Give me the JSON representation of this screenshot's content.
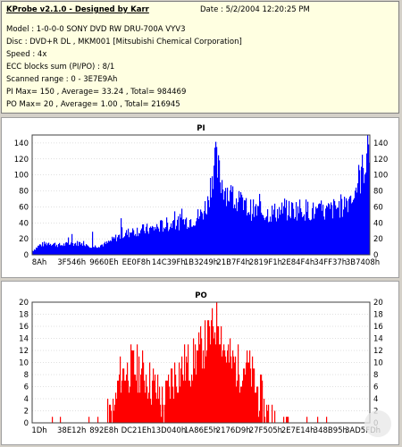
{
  "app": {
    "title": "KProbe v2.1.0 - Designed by Karr",
    "date": "Date : 5/2/2004 12:20:25 PM"
  },
  "info": {
    "model": "Model : 1-0-0-0 SONY    DVD RW DRU-700A  VYV3",
    "disc": "Disc : DVD+R DL , MKM001 [Mitsubishi Chemical Corporation]",
    "speed": "Speed : 4x",
    "ecc": "ECC blocks sum (PI/PO) : 8/1",
    "range": "Scanned range : 0 - 3E7E9Ah",
    "pi_stats": "PI Max= 150 , Average= 33.24 , Total= 984469",
    "po_stats": "PO Max= 20 , Average= 1.00 , Total= 216945"
  },
  "colors": {
    "panel_bg": "#ffffe1",
    "chart_fill": "#0000ff",
    "po_fill": "#ff0000",
    "chart_title_pi": "#0000cc",
    "chart_title_po": "#cc00cc"
  },
  "chart_data": [
    {
      "type": "area",
      "title": "PI",
      "xlabel": "",
      "ylabel": "",
      "ylim": [
        0,
        150
      ],
      "yticks": [
        0,
        20,
        40,
        60,
        80,
        100,
        120,
        140
      ],
      "grid": true,
      "xticks": [
        "8Ah",
        "3F546h",
        "9660Eh",
        "EE0F8h",
        "14C39Fh",
        "1B3249h",
        "21B7F4h",
        "2819F1h",
        "2E84F4h",
        "34FF37h",
        "3B7408h"
      ],
      "values_profile": [
        [
          0,
          5
        ],
        [
          0.02,
          12
        ],
        [
          0.05,
          15
        ],
        [
          0.08,
          12
        ],
        [
          0.12,
          14
        ],
        [
          0.15,
          15
        ],
        [
          0.18,
          10
        ],
        [
          0.22,
          14
        ],
        [
          0.25,
          22
        ],
        [
          0.3,
          30
        ],
        [
          0.35,
          32
        ],
        [
          0.4,
          38
        ],
        [
          0.45,
          42
        ],
        [
          0.48,
          45
        ],
        [
          0.5,
          50
        ],
        [
          0.52,
          65
        ],
        [
          0.54,
          120
        ],
        [
          0.56,
          92
        ],
        [
          0.58,
          78
        ],
        [
          0.6,
          70
        ],
        [
          0.63,
          60
        ],
        [
          0.66,
          55
        ],
        [
          0.7,
          52
        ],
        [
          0.75,
          55
        ],
        [
          0.8,
          58
        ],
        [
          0.85,
          52
        ],
        [
          0.88,
          55
        ],
        [
          0.92,
          62
        ],
        [
          0.95,
          75
        ],
        [
          0.98,
          105
        ],
        [
          1.0,
          140
        ]
      ]
    },
    {
      "type": "area",
      "title": "PO",
      "xlabel": "",
      "ylabel": "",
      "ylim": [
        0,
        20
      ],
      "yticks": [
        0,
        2,
        4,
        6,
        8,
        10,
        12,
        14,
        16,
        18,
        20
      ],
      "grid": true,
      "xticks": [
        "1Dh",
        "38E12h",
        "892E8h",
        "DC21Eh",
        "13D040h",
        "1A86E5h",
        "2176D9h",
        "27F505h",
        "2E7E14h",
        "348B95h",
        "3AD5FDh"
      ],
      "values_profile": [
        [
          0,
          0
        ],
        [
          0.22,
          0
        ],
        [
          0.24,
          1
        ],
        [
          0.26,
          8
        ],
        [
          0.3,
          9
        ],
        [
          0.34,
          8
        ],
        [
          0.36,
          6
        ],
        [
          0.39,
          3
        ],
        [
          0.41,
          7
        ],
        [
          0.44,
          9
        ],
        [
          0.47,
          10
        ],
        [
          0.5,
          12
        ],
        [
          0.52,
          14
        ],
        [
          0.54,
          16
        ],
        [
          0.55,
          18
        ],
        [
          0.57,
          12
        ],
        [
          0.59,
          10
        ],
        [
          0.61,
          9
        ],
        [
          0.63,
          10
        ],
        [
          0.65,
          8
        ],
        [
          0.67,
          5
        ],
        [
          0.69,
          2
        ],
        [
          0.7,
          1
        ],
        [
          0.72,
          0
        ],
        [
          1.0,
          0
        ]
      ]
    }
  ]
}
